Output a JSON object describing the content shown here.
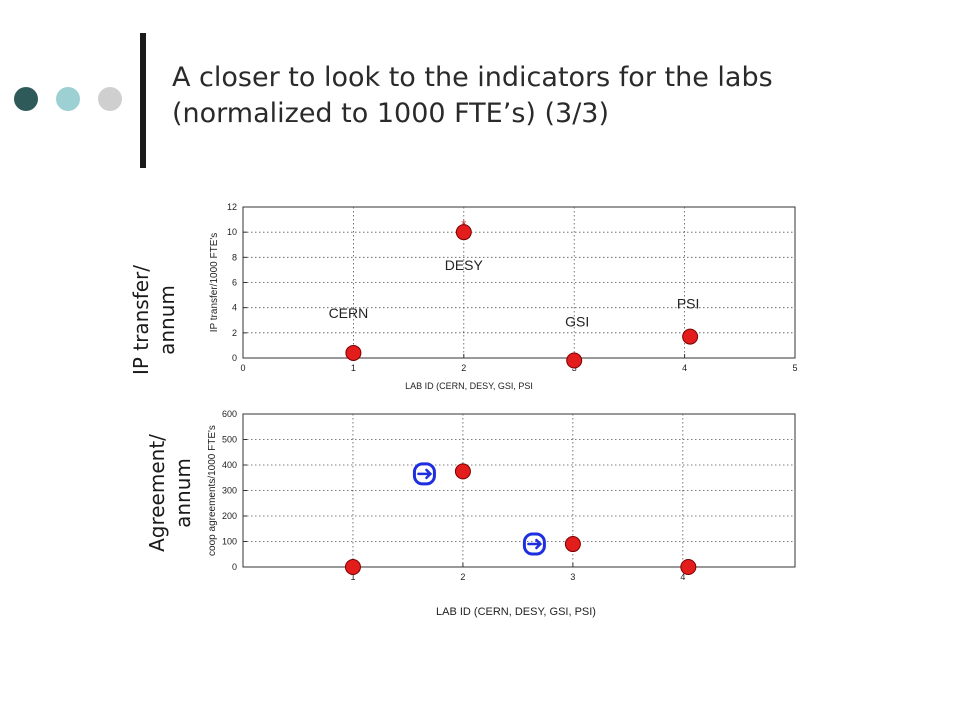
{
  "slide": {
    "title_line1": "A closer to look to the indicators for the labs",
    "title_line2": "(normalized to 1000 FTE’s) (3/3)",
    "bullet_colors": [
      "#2e5a5a",
      "#9cd0d3",
      "#cfcfcf"
    ]
  },
  "side_labels": {
    "top_line1": "IP transfer/",
    "top_line2": "annum",
    "bottom_line1": "Agreement/",
    "bottom_line2": "annum"
  },
  "chart_data": [
    {
      "type": "scatter",
      "xlabel": "LAB ID (CERN, DESY, GSI, PSI",
      "ylabel": "IP transfer/1000 FTE's",
      "xlim": [
        0,
        5
      ],
      "ylim": [
        0,
        12
      ],
      "x_ticks": [
        "0",
        "1",
        "2",
        "3",
        "4",
        "5"
      ],
      "y_ticks": [
        "0",
        "2",
        "4",
        "6",
        "8",
        "10",
        "12"
      ],
      "grid": true,
      "marker_color": "#e31c1c",
      "points": [
        {
          "x": 1,
          "y": 0.4,
          "label": "CERN"
        },
        {
          "x": 2,
          "y": 10,
          "label": "DESY"
        },
        {
          "x": 3,
          "y": -0.2,
          "label": "GSI"
        },
        {
          "x": 4.05,
          "y": 1.7,
          "label": "PSI"
        }
      ]
    },
    {
      "type": "scatter",
      "xlabel": "LAB ID (CERN, DESY, GSI, PSI)",
      "ylabel": "coop agreements/1000 FTE's",
      "xlim": [
        0,
        4.2
      ],
      "ylim": [
        0,
        600
      ],
      "x_ticks": [
        "1",
        "2",
        "3",
        "4"
      ],
      "y_ticks": [
        "0",
        "100",
        "200",
        "300",
        "400",
        "500",
        "600"
      ],
      "grid": true,
      "marker_color": "#e31c1c",
      "arrow_color": "#1f2fe0",
      "points": [
        {
          "x": 1,
          "y": 0
        },
        {
          "x": 2,
          "y": 375
        },
        {
          "x": 3,
          "y": 90
        },
        {
          "x": 4.05,
          "y": 0
        }
      ],
      "arrows": [
        {
          "x": 1.65,
          "y": 365
        },
        {
          "x": 2.65,
          "y": 90
        }
      ]
    }
  ]
}
